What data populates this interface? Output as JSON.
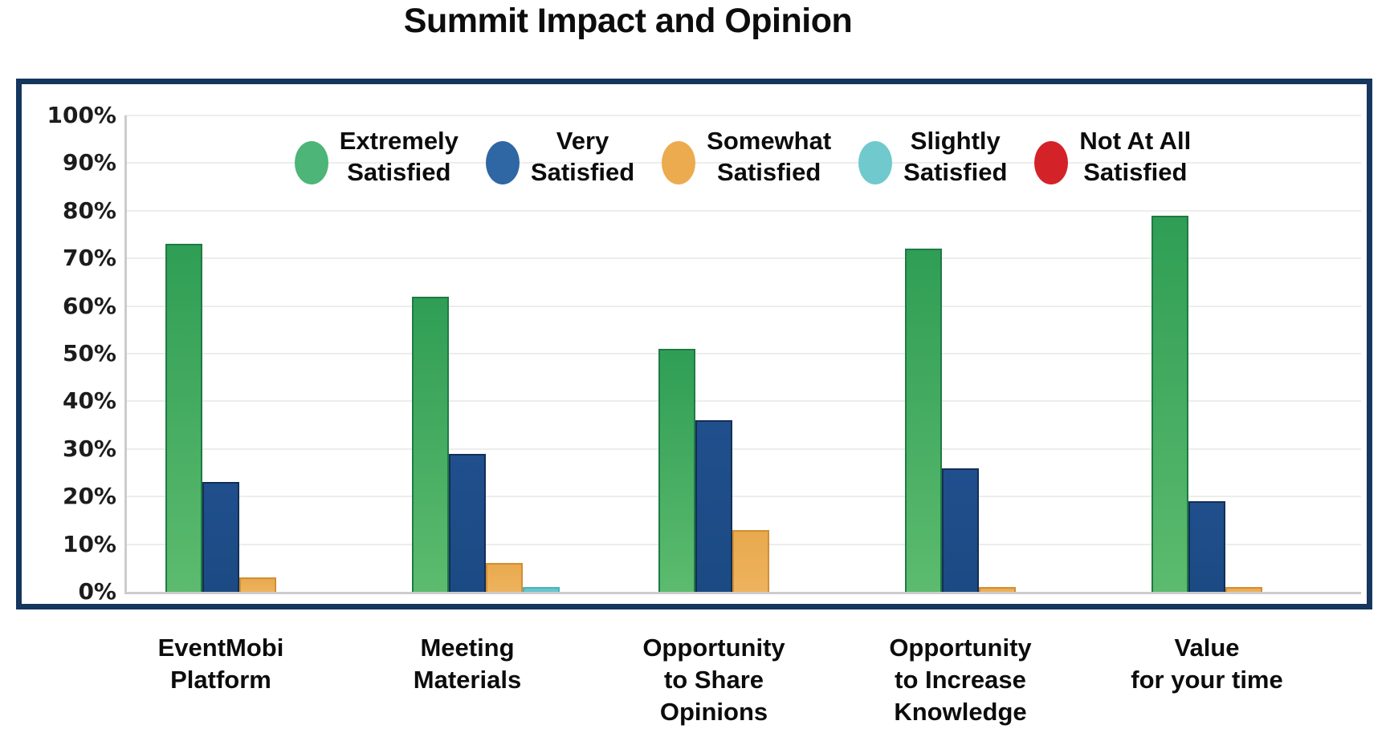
{
  "page": {
    "title": "Summit Impact and Opinion"
  },
  "chart_data": {
    "type": "bar",
    "title": "Summit Impact and Opinion",
    "categories": [
      "EventMobi Platform",
      "Meeting Materials",
      "Opportunity to Share Opinions",
      "Opportunity to Increase Knowledge",
      "Value for your time"
    ],
    "category_label_lines": [
      [
        "EventMobi",
        "Platform"
      ],
      [
        "Meeting",
        "Materials"
      ],
      [
        "Opportunity",
        "to Share",
        "Opinions"
      ],
      [
        "Opportunity",
        "to Increase",
        "Knowledge"
      ],
      [
        "Value",
        "for your time"
      ]
    ],
    "series": [
      {
        "name": "Extremely Satisfied",
        "values": [
          73,
          62,
          51,
          72,
          79
        ],
        "fill": "#2f9e55",
        "fill2": "#5cbb6e",
        "border": "#1f7a45"
      },
      {
        "name": "Very Satisfied",
        "values": [
          23,
          29,
          36,
          26,
          19
        ],
        "fill": "#204f8d",
        "fill2": "#1b4a83",
        "border": "#132f55"
      },
      {
        "name": "Somewhat Satisfied",
        "values": [
          3,
          6,
          13,
          1,
          1
        ],
        "fill": "#e9a94e",
        "fill2": "#eeb35e",
        "border": "#d08f35"
      },
      {
        "name": "Slightly Satisfied",
        "values": [
          0,
          1,
          0,
          0,
          0
        ],
        "fill": "#66c6cf",
        "fill2": "#66c6cf",
        "border": "#4fb0ba"
      },
      {
        "name": "Not At All Satisfied",
        "values": [
          0,
          0,
          0,
          0,
          0
        ],
        "fill": "#d42228",
        "fill2": "#d42228",
        "border": "#b01c22"
      }
    ],
    "legend": [
      {
        "lines": [
          "Extremely",
          "Satisfied"
        ],
        "dot_color": "#4cb577"
      },
      {
        "lines": [
          "Very",
          "Satisfied"
        ],
        "dot_color": "#2e67a3"
      },
      {
        "lines": [
          "Somewhat",
          "Satisfied"
        ],
        "dot_color": "#ecab4e"
      },
      {
        "lines": [
          "Slightly",
          "Satisfied"
        ],
        "dot_color": "#6fc9cd"
      },
      {
        "lines": [
          "Not At All",
          "Satisfied"
        ],
        "dot_color": "#d42229"
      }
    ],
    "y_axis": {
      "ticks": [
        "0%",
        "10%",
        "20%",
        "30%",
        "40%",
        "50%",
        "60%",
        "70%",
        "80%",
        "90%",
        "100%"
      ],
      "min": 0,
      "max": 100,
      "step": 10
    },
    "grid": true,
    "legend_position": "top-center",
    "frame_color": "#15365e"
  }
}
